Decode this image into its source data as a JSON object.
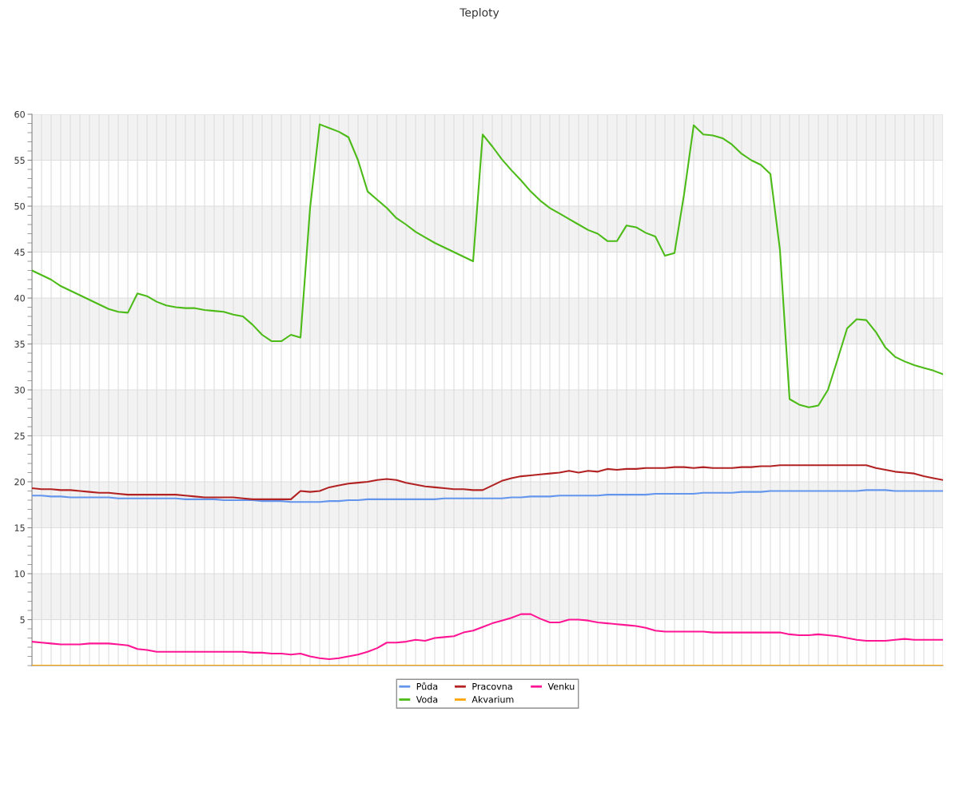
{
  "chart_data": {
    "type": "line",
    "title": "Teploty",
    "categories": [
      null,
      null,
      null,
      null,
      null,
      null,
      null,
      null,
      null,
      null,
      null,
      null,
      null,
      null,
      null,
      null,
      null,
      null,
      null,
      null,
      null,
      null,
      null,
      null,
      null,
      null,
      null,
      null,
      null,
      null,
      null,
      null,
      null,
      null,
      null,
      null,
      null,
      null,
      null,
      null,
      null,
      null,
      null,
      null,
      null,
      null,
      null,
      null,
      null,
      null,
      null,
      null,
      null,
      null,
      null,
      null,
      null,
      null,
      null,
      null,
      null,
      null,
      null,
      null,
      null,
      null,
      null,
      null,
      null,
      null,
      null,
      null,
      null,
      null,
      null,
      null,
      null,
      null,
      null,
      null,
      null,
      null,
      null,
      null,
      null,
      null,
      null,
      null,
      null,
      null,
      null,
      null,
      null,
      null,
      null,
      null
    ],
    "ylim": [
      0,
      60
    ],
    "yticks": [
      {
        "value": 0,
        "label": null
      },
      {
        "value": 1,
        "label": null
      },
      {
        "value": 2,
        "label": null
      },
      {
        "value": 3,
        "label": null
      },
      {
        "value": 4,
        "label": null
      },
      5,
      {
        "value": 6,
        "label": null
      },
      {
        "value": 7,
        "label": null
      },
      {
        "value": 8,
        "label": null
      },
      {
        "value": 9,
        "label": null
      },
      10,
      {
        "value": 11,
        "label": null
      },
      {
        "value": 12,
        "label": null
      },
      {
        "value": 13,
        "label": null
      },
      {
        "value": 14,
        "label": null
      },
      15,
      {
        "value": 16,
        "label": null
      },
      {
        "value": 17,
        "label": null
      },
      {
        "value": 18,
        "label": null
      },
      {
        "value": 19,
        "label": null
      },
      20,
      {
        "value": 21,
        "label": null
      },
      {
        "value": 22,
        "label": null
      },
      {
        "value": 23,
        "label": null
      },
      {
        "value": 24,
        "label": null
      },
      25,
      {
        "value": 26,
        "label": null
      },
      {
        "value": 27,
        "label": null
      },
      {
        "value": 28,
        "label": null
      },
      {
        "value": 29,
        "label": null
      },
      30,
      {
        "value": 31,
        "label": null
      },
      {
        "value": 32,
        "label": null
      },
      {
        "value": 33,
        "label": null
      },
      {
        "value": 34,
        "label": null
      },
      35,
      {
        "value": 36,
        "label": null
      },
      {
        "value": 37,
        "label": null
      },
      {
        "value": 38,
        "label": null
      },
      {
        "value": 39,
        "label": null
      },
      40,
      {
        "value": 41,
        "label": null
      },
      {
        "value": 42,
        "label": null
      },
      {
        "value": 43,
        "label": null
      },
      {
        "value": 44,
        "label": null
      },
      45,
      {
        "value": 46,
        "label": null
      },
      {
        "value": 47,
        "label": null
      },
      {
        "value": 48,
        "label": null
      },
      {
        "value": 49,
        "label": null
      },
      50,
      {
        "value": 51,
        "label": null
      },
      {
        "value": 52,
        "label": null
      },
      {
        "value": 53,
        "label": null
      },
      {
        "value": 54,
        "label": null
      },
      55,
      {
        "value": 56,
        "label": null
      },
      {
        "value": 57,
        "label": null
      },
      {
        "value": 58,
        "label": null
      },
      {
        "value": 59,
        "label": null
      },
      60
    ],
    "grid": true,
    "legend": "bottom",
    "marker": "none",
    "line_style": "solid",
    "bands": [
      {
        "axis": "y",
        "from": 5,
        "to": 10,
        "color": "#f2f2f2"
      },
      {
        "axis": "y",
        "from": 15,
        "to": 20,
        "color": "#f2f2f2"
      },
      {
        "axis": "y",
        "from": 25,
        "to": 30,
        "color": "#f2f2f2"
      },
      {
        "axis": "y",
        "from": 35,
        "to": 40,
        "color": "#f2f2f2"
      },
      {
        "axis": "y",
        "from": 45,
        "to": 50,
        "color": "#f2f2f2"
      },
      {
        "axis": "y",
        "from": 55,
        "to": 60,
        "color": "#f2f2f2"
      }
    ],
    "series": [
      {
        "name": "Půda",
        "color": "#6495ed",
        "values": [
          18.5,
          18.5,
          18.4,
          18.4,
          18.3,
          18.3,
          18.3,
          18.3,
          18.3,
          18.2,
          18.2,
          18.2,
          18.2,
          18.2,
          18.2,
          18.2,
          18.1,
          18.1,
          18.1,
          18.1,
          18.0,
          18.0,
          18.0,
          18.0,
          17.9,
          17.9,
          17.9,
          17.8,
          17.8,
          17.8,
          17.8,
          17.9,
          17.9,
          18.0,
          18.0,
          18.1,
          18.1,
          18.1,
          18.1,
          18.1,
          18.1,
          18.1,
          18.1,
          18.2,
          18.2,
          18.2,
          18.2,
          18.2,
          18.2,
          18.2,
          18.3,
          18.3,
          18.4,
          18.4,
          18.4,
          18.5,
          18.5,
          18.5,
          18.5,
          18.5,
          18.6,
          18.6,
          18.6,
          18.6,
          18.6,
          18.7,
          18.7,
          18.7,
          18.7,
          18.7,
          18.8,
          18.8,
          18.8,
          18.8,
          18.9,
          18.9,
          18.9,
          19.0,
          19.0,
          19.0,
          19.0,
          19.0,
          19.0,
          19.0,
          19.0,
          19.0,
          19.0,
          19.1,
          19.1,
          19.1,
          19.0,
          19.0,
          19.0,
          19.0,
          19.0,
          19.0
        ]
      },
      {
        "name": "Voda",
        "color": "#4cbb17",
        "values": [
          43.0,
          42.5,
          42.0,
          41.3,
          40.8,
          40.3,
          39.8,
          39.3,
          38.8,
          38.5,
          38.4,
          40.5,
          40.2,
          39.6,
          39.2,
          39.0,
          38.9,
          38.9,
          38.7,
          38.6,
          38.5,
          38.2,
          38.0,
          37.1,
          36.0,
          35.3,
          35.3,
          36.0,
          35.7,
          49.8,
          58.9,
          58.5,
          58.1,
          57.5,
          55.0,
          51.6,
          50.7,
          49.8,
          48.7,
          48.0,
          47.2,
          46.6,
          46.0,
          45.5,
          45.0,
          44.5,
          44.0,
          57.8,
          56.5,
          55.1,
          53.9,
          52.8,
          51.6,
          50.6,
          49.8,
          49.2,
          48.6,
          48.0,
          47.4,
          47.0,
          46.2,
          46.2,
          47.9,
          47.7,
          47.1,
          46.7,
          44.6,
          44.9,
          51.3,
          58.8,
          57.8,
          57.7,
          57.4,
          56.7,
          55.7,
          55.0,
          54.5,
          53.5,
          45.2,
          29.0,
          28.4,
          28.1,
          28.3,
          30.0,
          33.3,
          36.7,
          37.7,
          37.6,
          36.3,
          34.6,
          33.6,
          33.1,
          32.7,
          32.4,
          32.1,
          31.7
        ]
      },
      {
        "name": "Pracovna",
        "color": "#b22222",
        "values": [
          19.3,
          19.2,
          19.2,
          19.1,
          19.1,
          19.0,
          18.9,
          18.8,
          18.8,
          18.7,
          18.6,
          18.6,
          18.6,
          18.6,
          18.6,
          18.6,
          18.5,
          18.4,
          18.3,
          18.3,
          18.3,
          18.3,
          18.2,
          18.1,
          18.1,
          18.1,
          18.1,
          18.1,
          19.0,
          18.9,
          19.0,
          19.4,
          19.6,
          19.8,
          19.9,
          20.0,
          20.2,
          20.3,
          20.2,
          19.9,
          19.7,
          19.5,
          19.4,
          19.3,
          19.2,
          19.2,
          19.1,
          19.1,
          19.6,
          20.1,
          20.4,
          20.6,
          20.7,
          20.8,
          20.9,
          21.0,
          21.2,
          21.0,
          21.2,
          21.1,
          21.4,
          21.3,
          21.4,
          21.4,
          21.5,
          21.5,
          21.5,
          21.6,
          21.6,
          21.5,
          21.6,
          21.5,
          21.5,
          21.5,
          21.6,
          21.6,
          21.7,
          21.7,
          21.8,
          21.8,
          21.8,
          21.8,
          21.8,
          21.8,
          21.8,
          21.8,
          21.8,
          21.8,
          21.5,
          21.3,
          21.1,
          21.0,
          20.9,
          20.6,
          20.4,
          20.2
        ]
      },
      {
        "name": "Akvarium",
        "color": "#ffa500",
        "values": [
          0,
          0,
          0,
          0,
          0,
          0,
          0,
          0,
          0,
          0,
          0,
          0,
          0,
          0,
          0,
          0,
          0,
          0,
          0,
          0,
          0,
          0,
          0,
          0,
          0,
          0,
          0,
          0,
          0,
          0,
          0,
          0,
          0,
          0,
          0,
          0,
          0,
          0,
          0,
          0,
          0,
          0,
          0,
          0,
          0,
          0,
          0,
          0,
          0,
          0,
          0,
          0,
          0,
          0,
          0,
          0,
          0,
          0,
          0,
          0,
          0,
          0,
          0,
          0,
          0,
          0,
          0,
          0,
          0,
          0,
          0,
          0,
          0,
          0,
          0,
          0,
          0,
          0,
          0,
          0,
          0,
          0,
          0,
          0,
          0,
          0,
          0,
          0,
          0,
          0,
          0,
          0,
          0,
          0,
          0,
          0
        ]
      },
      {
        "name": "Venku",
        "color": "#ff1493",
        "values": [
          2.6,
          2.5,
          2.4,
          2.3,
          2.3,
          2.3,
          2.4,
          2.4,
          2.4,
          2.3,
          2.2,
          1.8,
          1.7,
          1.5,
          1.5,
          1.5,
          1.5,
          1.5,
          1.5,
          1.5,
          1.5,
          1.5,
          1.5,
          1.4,
          1.4,
          1.3,
          1.3,
          1.2,
          1.3,
          1.0,
          0.8,
          0.7,
          0.8,
          1.0,
          1.2,
          1.5,
          1.9,
          2.5,
          2.5,
          2.6,
          2.8,
          2.7,
          3.0,
          3.1,
          3.2,
          3.6,
          3.8,
          4.2,
          4.6,
          4.9,
          5.2,
          5.6,
          5.6,
          5.1,
          4.7,
          4.7,
          5.0,
          5.0,
          4.9,
          4.7,
          4.6,
          4.5,
          4.4,
          4.3,
          4.1,
          3.8,
          3.7,
          3.7,
          3.7,
          3.7,
          3.7,
          3.6,
          3.6,
          3.6,
          3.6,
          3.6,
          3.6,
          3.6,
          3.6,
          3.4,
          3.3,
          3.3,
          3.4,
          3.3,
          3.2,
          3.0,
          2.8,
          2.7,
          2.7,
          2.7,
          2.8,
          2.9,
          2.8,
          2.8,
          2.8,
          2.8
        ]
      }
    ]
  }
}
